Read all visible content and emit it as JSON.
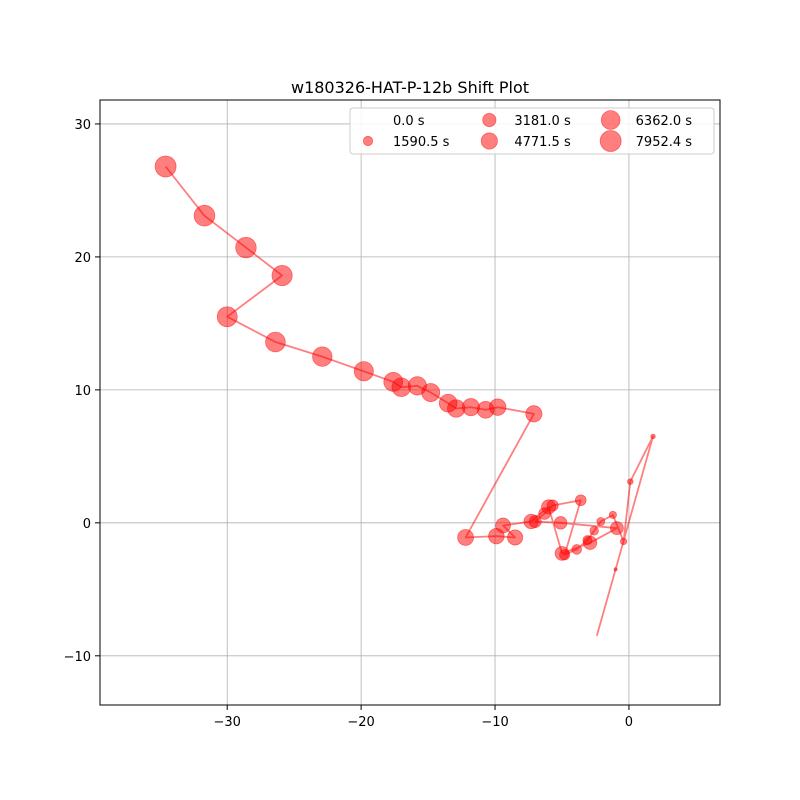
{
  "chart_data": {
    "type": "scatter",
    "title": "w180326-HAT-P-12b Shift Plot",
    "xlabel": "",
    "ylabel": "",
    "xlim": [
      -39.5,
      6.8
    ],
    "ylim": [
      -13.7,
      31.8
    ],
    "xticks": [
      -30,
      -20,
      -10,
      0
    ],
    "yticks": [
      -10,
      0,
      10,
      20,
      30
    ],
    "xtick_labels": [
      "−30",
      "−20",
      "−10",
      "0"
    ],
    "ytick_labels": [
      "−10",
      "0",
      "10",
      "20",
      "30"
    ],
    "grid": true,
    "color": "#ff0000",
    "alpha": 0.5,
    "connect_points": true,
    "time_max_s": 7952.4,
    "legend": {
      "placement": "top-right",
      "columns": 3,
      "entries": [
        {
          "label": "0.0 s",
          "time_s": 0.0
        },
        {
          "label": "1590.5 s",
          "time_s": 1590.5
        },
        {
          "label": "3181.0 s",
          "time_s": 3181.0
        },
        {
          "label": "4771.5 s",
          "time_s": 4771.5
        },
        {
          "label": "6362.0 s",
          "time_s": 6362.0
        },
        {
          "label": "7952.4 s",
          "time_s": 7952.4
        }
      ]
    },
    "points": [
      {
        "x": -2.4,
        "y": -8.5,
        "t": 0
      },
      {
        "x": -1.0,
        "y": -3.5,
        "t": 190
      },
      {
        "x": 1.8,
        "y": 6.5,
        "t": 380
      },
      {
        "x": 0.1,
        "y": 3.1,
        "t": 570
      },
      {
        "x": -0.4,
        "y": -1.4,
        "t": 760
      },
      {
        "x": -1.2,
        "y": 0.6,
        "t": 950
      },
      {
        "x": -2.1,
        "y": 0.1,
        "t": 1140
      },
      {
        "x": -2.6,
        "y": -0.6,
        "t": 1330
      },
      {
        "x": -3.1,
        "y": -1.3,
        "t": 1520
      },
      {
        "x": -3.9,
        "y": -2.0,
        "t": 1710
      },
      {
        "x": -4.8,
        "y": -2.4,
        "t": 1900
      },
      {
        "x": -3.6,
        "y": 1.7,
        "t": 2090
      },
      {
        "x": -5.7,
        "y": 1.3,
        "t": 2280
      },
      {
        "x": -6.3,
        "y": 0.7,
        "t": 2470
      },
      {
        "x": -7.0,
        "y": 0.1,
        "t": 2660
      },
      {
        "x": -5.1,
        "y": 0.0,
        "t": 2850
      },
      {
        "x": -0.9,
        "y": -0.4,
        "t": 3040
      },
      {
        "x": -2.9,
        "y": -1.5,
        "t": 3230
      },
      {
        "x": -5.0,
        "y": -2.3,
        "t": 3420
      },
      {
        "x": -6.0,
        "y": 1.2,
        "t": 3610
      },
      {
        "x": -7.3,
        "y": 0.1,
        "t": 3800
      },
      {
        "x": -9.4,
        "y": -0.2,
        "t": 3990
      },
      {
        "x": -8.5,
        "y": -1.1,
        "t": 4180
      },
      {
        "x": -9.9,
        "y": -1.0,
        "t": 4370
      },
      {
        "x": -12.2,
        "y": -1.1,
        "t": 4560
      },
      {
        "x": -7.1,
        "y": 8.2,
        "t": 4750
      },
      {
        "x": -9.8,
        "y": 8.7,
        "t": 4940
      },
      {
        "x": -10.7,
        "y": 8.5,
        "t": 5130
      },
      {
        "x": -11.8,
        "y": 8.7,
        "t": 5320
      },
      {
        "x": -12.9,
        "y": 8.6,
        "t": 5510
      },
      {
        "x": -13.5,
        "y": 9.0,
        "t": 5700
      },
      {
        "x": -14.8,
        "y": 9.8,
        "t": 5890
      },
      {
        "x": -15.8,
        "y": 10.3,
        "t": 6080
      },
      {
        "x": -17.0,
        "y": 10.2,
        "t": 6270
      },
      {
        "x": -17.6,
        "y": 10.6,
        "t": 6460
      },
      {
        "x": -19.8,
        "y": 11.4,
        "t": 6650
      },
      {
        "x": -22.9,
        "y": 12.5,
        "t": 6840
      },
      {
        "x": -26.4,
        "y": 13.6,
        "t": 7030
      },
      {
        "x": -30.0,
        "y": 15.5,
        "t": 7220
      },
      {
        "x": -25.9,
        "y": 18.6,
        "t": 7410
      },
      {
        "x": -28.6,
        "y": 20.7,
        "t": 7590
      },
      {
        "x": -31.7,
        "y": 23.1,
        "t": 7770
      },
      {
        "x": -34.6,
        "y": 26.8,
        "t": 7952.4
      }
    ]
  }
}
